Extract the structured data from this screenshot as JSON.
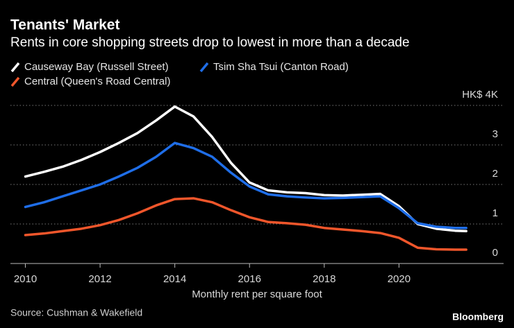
{
  "chart_data": {
    "type": "line",
    "title": "Tenants' Market",
    "subtitle": "Rents in core shopping streets drop to lowest in more than a decade",
    "x_label": "Monthly rent per square foot",
    "source": "Source: Cushman & Wakefield",
    "brand": "Bloomberg",
    "x": [
      2010,
      2010.5,
      2011,
      2011.5,
      2012,
      2012.5,
      2013,
      2013.5,
      2014,
      2014.5,
      2015,
      2015.5,
      2016,
      2016.5,
      2017,
      2017.5,
      2018,
      2018.5,
      2019,
      2019.5,
      2020,
      2020.5,
      2021,
      2021.5,
      2021.8
    ],
    "series": [
      {
        "name": "Causeway Bay (Russell Street)",
        "color": "#ffffff",
        "values": [
          2.2,
          2.32,
          2.45,
          2.62,
          2.82,
          3.05,
          3.3,
          3.62,
          3.97,
          3.72,
          3.2,
          2.55,
          2.05,
          1.85,
          1.8,
          1.78,
          1.73,
          1.72,
          1.74,
          1.76,
          1.45,
          1.0,
          0.88,
          0.83,
          0.82
        ]
      },
      {
        "name": "Tsim Sha Tsui (Canton Road)",
        "color": "#1f6ee8",
        "values": [
          1.43,
          1.55,
          1.7,
          1.85,
          2.0,
          2.2,
          2.42,
          2.7,
          3.05,
          2.92,
          2.7,
          2.3,
          1.95,
          1.75,
          1.7,
          1.67,
          1.65,
          1.66,
          1.68,
          1.7,
          1.4,
          1.02,
          0.93,
          0.9,
          0.9
        ]
      },
      {
        "name": "Central (Queen's Road Central)",
        "color": "#f0562b",
        "values": [
          0.72,
          0.76,
          0.82,
          0.88,
          0.97,
          1.1,
          1.27,
          1.47,
          1.63,
          1.65,
          1.55,
          1.35,
          1.17,
          1.05,
          1.02,
          0.98,
          0.9,
          0.86,
          0.82,
          0.77,
          0.65,
          0.4,
          0.36,
          0.35,
          0.35
        ]
      }
    ],
    "xlim": [
      2009.6,
      2022.8
    ],
    "xticks": [
      2010,
      2012,
      2014,
      2016,
      2018,
      2020
    ],
    "ylim": [
      0,
      4
    ],
    "yticks": [
      0,
      1,
      2,
      3,
      {
        "value": 4,
        "label": "HK$ 4K"
      }
    ],
    "grid": true
  }
}
